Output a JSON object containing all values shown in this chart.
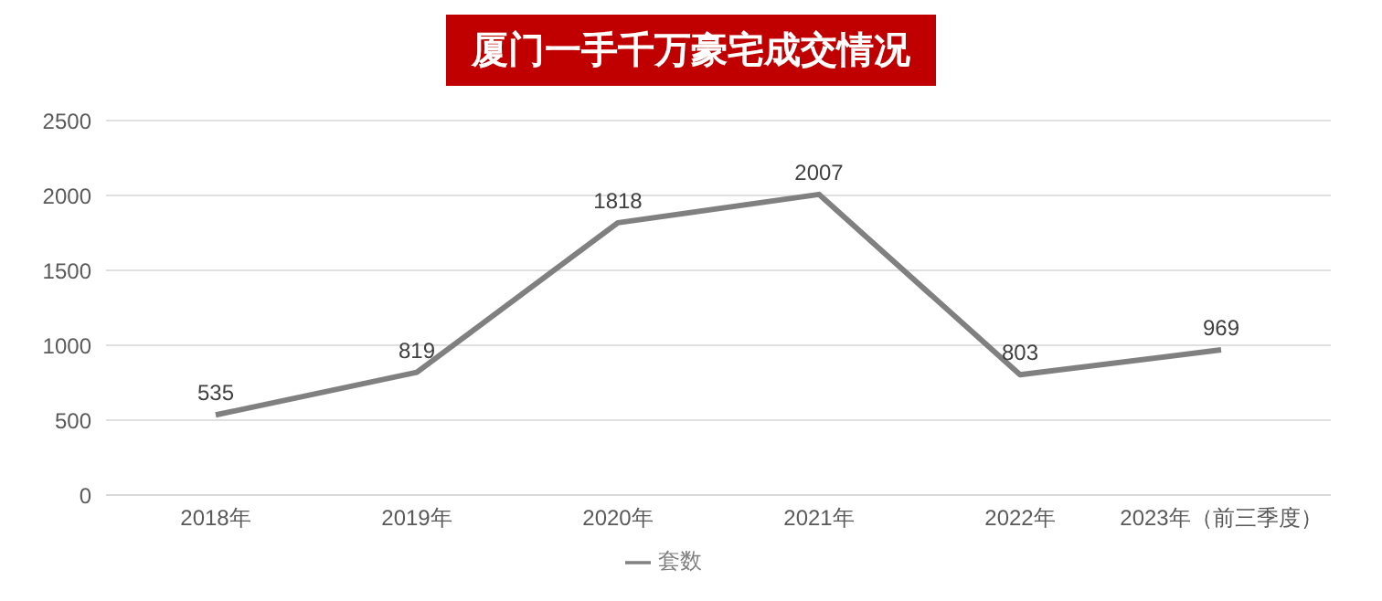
{
  "chart_data": {
    "type": "line",
    "title": "厦门一手千万豪宅成交情况",
    "categories": [
      "2018年",
      "2019年",
      "2020年",
      "2021年",
      "2022年",
      "2023年（前三季度）"
    ],
    "series": [
      {
        "name": "套数",
        "color": "#808080",
        "values": [
          535,
          819,
          1818,
          2007,
          803,
          969
        ]
      }
    ],
    "ylim": [
      0,
      2500
    ],
    "yticks": [
      0,
      500,
      1000,
      1500,
      2000,
      2500
    ],
    "grid": "y",
    "legend": "bottom",
    "marker": "none",
    "line_style": "solid",
    "data_labels": true
  }
}
